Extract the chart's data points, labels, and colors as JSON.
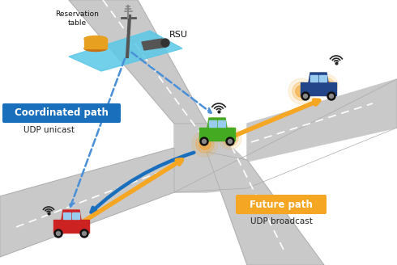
{
  "bg_color": "#ffffff",
  "road_color": "#c9c9c9",
  "road_edge_color": "#aaaaaa",
  "blue_arrow_color": "#1a6fbd",
  "orange_arrow_color": "#f5a623",
  "dashed_blue_color": "#4a90d9",
  "label_coordinated": "Coordinated path",
  "label_coordinated_sub": "UDP unicast",
  "label_future": "Future path",
  "label_future_sub": "UDP broadcast",
  "label_rsu": "RSU",
  "label_reservation": "Reservation\ntable",
  "coordinated_bg": "#1a6fbd",
  "future_bg": "#f5a623",
  "rsu_platform_color": "#5bc8e8",
  "db_color": "#e8a020",
  "db_shadow_color": "#c87010",
  "red_car_color": "#cc2222",
  "green_car_color": "#44aa22",
  "blue_car_color": "#224488",
  "window_color": "#99ccee",
  "wheel_color": "#111111",
  "wheel_inner_color": "#888888",
  "wifi_color": "#222222",
  "glow_color": "#f5a020"
}
